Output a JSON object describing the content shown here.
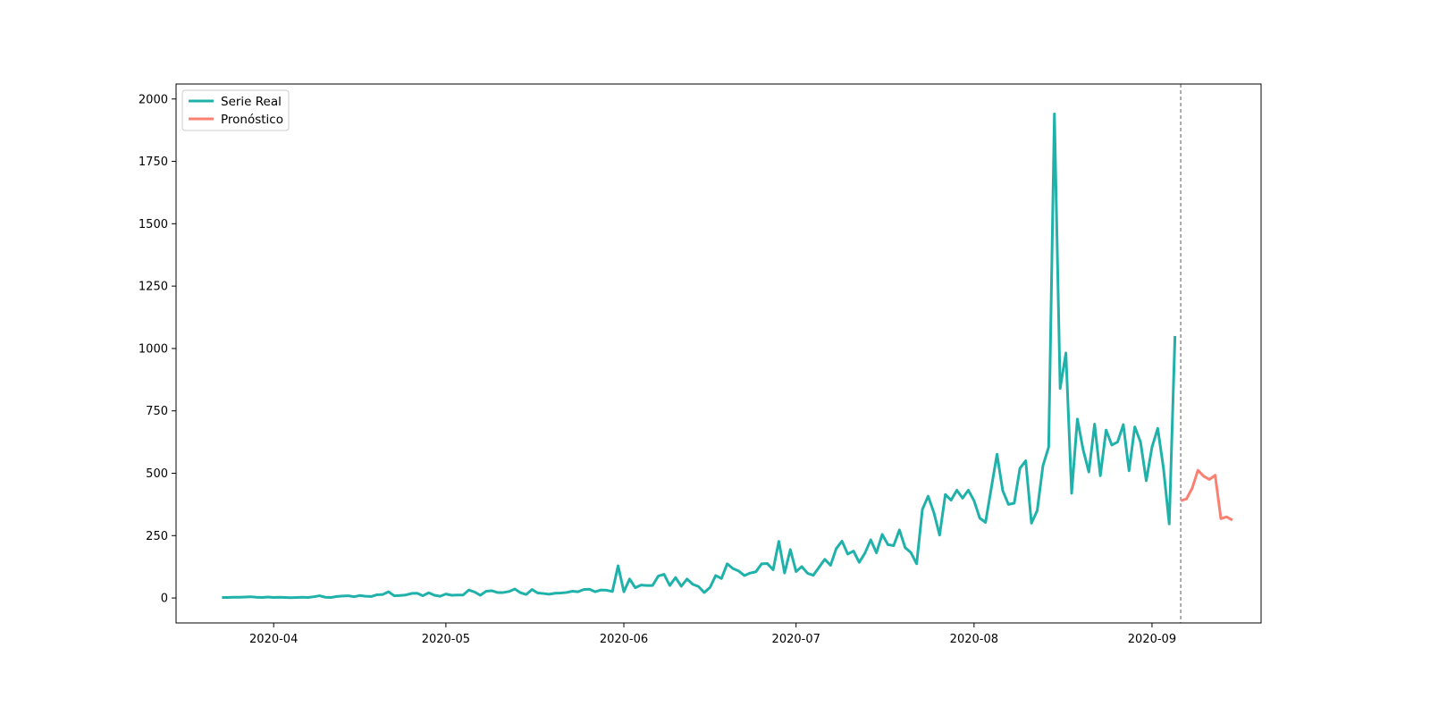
{
  "chart_data": {
    "type": "line",
    "title": "",
    "xlabel": "",
    "ylabel": "",
    "xlim": [
      "2020-03-15",
      "2020-09-20"
    ],
    "ylim": [
      -100,
      2060
    ],
    "x_ticks": [
      "2020-04-01",
      "2020-05-01",
      "2020-06-01",
      "2020-07-01",
      "2020-08-01",
      "2020-09-01"
    ],
    "x_tick_labels": [
      "2020-04",
      "2020-05",
      "2020-06",
      "2020-07",
      "2020-08",
      "2020-09"
    ],
    "y_ticks": [
      0,
      250,
      500,
      750,
      1000,
      1250,
      1500,
      1750,
      2000
    ],
    "y_tick_labels": [
      "0",
      "250",
      "500",
      "750",
      "1000",
      "1250",
      "1500",
      "1750",
      "2000"
    ],
    "grid": false,
    "legend_position": "upper-left",
    "reference_line": {
      "x": "2020-09-06",
      "style": "dashed",
      "color": "#808080"
    },
    "series": [
      {
        "name": "Serie Real",
        "color": "#20b2aa",
        "points": [
          [
            "2020-03-23",
            2
          ],
          [
            "2020-03-24",
            2
          ],
          [
            "2020-03-25",
            3
          ],
          [
            "2020-03-26",
            3
          ],
          [
            "2020-03-27",
            4
          ],
          [
            "2020-03-28",
            5
          ],
          [
            "2020-03-29",
            3
          ],
          [
            "2020-03-30",
            2
          ],
          [
            "2020-03-31",
            4
          ],
          [
            "2020-04-01",
            2
          ],
          [
            "2020-04-02",
            3
          ],
          [
            "2020-04-03",
            2
          ],
          [
            "2020-04-04",
            1
          ],
          [
            "2020-04-05",
            2
          ],
          [
            "2020-04-06",
            3
          ],
          [
            "2020-04-07",
            2
          ],
          [
            "2020-04-08",
            5
          ],
          [
            "2020-04-09",
            9
          ],
          [
            "2020-04-10",
            3
          ],
          [
            "2020-04-11",
            2
          ],
          [
            "2020-04-12",
            6
          ],
          [
            "2020-04-13",
            8
          ],
          [
            "2020-04-14",
            9
          ],
          [
            "2020-04-15",
            5
          ],
          [
            "2020-04-16",
            10
          ],
          [
            "2020-04-17",
            7
          ],
          [
            "2020-04-18",
            6
          ],
          [
            "2020-04-19",
            13
          ],
          [
            "2020-04-20",
            14
          ],
          [
            "2020-04-21",
            25
          ],
          [
            "2020-04-22",
            9
          ],
          [
            "2020-04-23",
            10
          ],
          [
            "2020-04-24",
            12
          ],
          [
            "2020-04-25",
            18
          ],
          [
            "2020-04-26",
            19
          ],
          [
            "2020-04-27",
            9
          ],
          [
            "2020-04-28",
            21
          ],
          [
            "2020-04-29",
            11
          ],
          [
            "2020-04-30",
            7
          ],
          [
            "2020-05-01",
            16
          ],
          [
            "2020-05-02",
            11
          ],
          [
            "2020-05-03",
            12
          ],
          [
            "2020-05-04",
            12
          ],
          [
            "2020-05-05",
            32
          ],
          [
            "2020-05-06",
            24
          ],
          [
            "2020-05-07",
            11
          ],
          [
            "2020-05-08",
            27
          ],
          [
            "2020-05-09",
            29
          ],
          [
            "2020-05-10",
            22
          ],
          [
            "2020-05-11",
            22
          ],
          [
            "2020-05-12",
            26
          ],
          [
            "2020-05-13",
            36
          ],
          [
            "2020-05-14",
            21
          ],
          [
            "2020-05-15",
            14
          ],
          [
            "2020-05-16",
            34
          ],
          [
            "2020-05-17",
            20
          ],
          [
            "2020-05-18",
            18
          ],
          [
            "2020-05-19",
            15
          ],
          [
            "2020-05-20",
            19
          ],
          [
            "2020-05-21",
            20
          ],
          [
            "2020-05-22",
            22
          ],
          [
            "2020-05-23",
            27
          ],
          [
            "2020-05-24",
            25
          ],
          [
            "2020-05-25",
            34
          ],
          [
            "2020-05-26",
            35
          ],
          [
            "2020-05-27",
            25
          ],
          [
            "2020-05-28",
            32
          ],
          [
            "2020-05-29",
            31
          ],
          [
            "2020-05-30",
            26
          ],
          [
            "2020-05-31",
            129
          ],
          [
            "2020-06-01",
            25
          ],
          [
            "2020-06-02",
            76
          ],
          [
            "2020-06-03",
            41
          ],
          [
            "2020-06-04",
            52
          ],
          [
            "2020-06-05",
            50
          ],
          [
            "2020-06-06",
            50
          ],
          [
            "2020-06-07",
            88
          ],
          [
            "2020-06-08",
            95
          ],
          [
            "2020-06-09",
            50
          ],
          [
            "2020-06-10",
            82
          ],
          [
            "2020-06-11",
            47
          ],
          [
            "2020-06-12",
            76
          ],
          [
            "2020-06-13",
            55
          ],
          [
            "2020-06-14",
            46
          ],
          [
            "2020-06-15",
            22
          ],
          [
            "2020-06-16",
            42
          ],
          [
            "2020-06-17",
            90
          ],
          [
            "2020-06-18",
            78
          ],
          [
            "2020-06-19",
            137
          ],
          [
            "2020-06-20",
            118
          ],
          [
            "2020-06-21",
            108
          ],
          [
            "2020-06-22",
            90
          ],
          [
            "2020-06-23",
            100
          ],
          [
            "2020-06-24",
            105
          ],
          [
            "2020-06-25",
            137
          ],
          [
            "2020-06-26",
            138
          ],
          [
            "2020-06-27",
            113
          ],
          [
            "2020-06-28",
            227
          ],
          [
            "2020-06-29",
            100
          ],
          [
            "2020-06-30",
            194
          ],
          [
            "2020-07-01",
            106
          ],
          [
            "2020-07-02",
            126
          ],
          [
            "2020-07-03",
            99
          ],
          [
            "2020-07-04",
            91
          ],
          [
            "2020-07-05",
            123
          ],
          [
            "2020-07-06",
            155
          ],
          [
            "2020-07-07",
            131
          ],
          [
            "2020-07-08",
            198
          ],
          [
            "2020-07-09",
            228
          ],
          [
            "2020-07-10",
            176
          ],
          [
            "2020-07-11",
            188
          ],
          [
            "2020-07-12",
            143
          ],
          [
            "2020-07-13",
            180
          ],
          [
            "2020-07-14",
            233
          ],
          [
            "2020-07-15",
            181
          ],
          [
            "2020-07-16",
            255
          ],
          [
            "2020-07-17",
            214
          ],
          [
            "2020-07-18",
            210
          ],
          [
            "2020-07-19",
            273
          ],
          [
            "2020-07-20",
            202
          ],
          [
            "2020-07-21",
            182
          ],
          [
            "2020-07-22",
            137
          ],
          [
            "2020-07-23",
            355
          ],
          [
            "2020-07-24",
            408
          ],
          [
            "2020-07-25",
            343
          ],
          [
            "2020-07-26",
            252
          ],
          [
            "2020-07-27",
            415
          ],
          [
            "2020-07-28",
            392
          ],
          [
            "2020-07-29",
            432
          ],
          [
            "2020-07-30",
            400
          ],
          [
            "2020-07-31",
            432
          ],
          [
            "2020-08-01",
            390
          ],
          [
            "2020-08-02",
            320
          ],
          [
            "2020-08-03",
            303
          ],
          [
            "2020-08-04",
            440
          ],
          [
            "2020-08-05",
            576
          ],
          [
            "2020-08-06",
            430
          ],
          [
            "2020-08-07",
            375
          ],
          [
            "2020-08-08",
            380
          ],
          [
            "2020-08-09",
            520
          ],
          [
            "2020-08-10",
            550
          ],
          [
            "2020-08-11",
            300
          ],
          [
            "2020-08-12",
            350
          ],
          [
            "2020-08-13",
            530
          ],
          [
            "2020-08-14",
            605
          ],
          [
            "2020-08-15",
            1940
          ],
          [
            "2020-08-16",
            840
          ],
          [
            "2020-08-17",
            982
          ],
          [
            "2020-08-18",
            420
          ],
          [
            "2020-08-19",
            717
          ],
          [
            "2020-08-20",
            595
          ],
          [
            "2020-08-21",
            505
          ],
          [
            "2020-08-22",
            697
          ],
          [
            "2020-08-23",
            490
          ],
          [
            "2020-08-24",
            673
          ],
          [
            "2020-08-25",
            613
          ],
          [
            "2020-08-26",
            625
          ],
          [
            "2020-08-27",
            695
          ],
          [
            "2020-08-28",
            510
          ],
          [
            "2020-08-29",
            686
          ],
          [
            "2020-08-30",
            625
          ],
          [
            "2020-08-31",
            470
          ],
          [
            "2020-09-01",
            605
          ],
          [
            "2020-09-02",
            680
          ],
          [
            "2020-09-03",
            520
          ],
          [
            "2020-09-04",
            297
          ],
          [
            "2020-09-05",
            1050
          ]
        ]
      },
      {
        "name": "Pronóstico",
        "color": "#fa8072",
        "points": [
          [
            "2020-09-06",
            390
          ],
          [
            "2020-09-07",
            397
          ],
          [
            "2020-09-08",
            440
          ],
          [
            "2020-09-09",
            512
          ],
          [
            "2020-09-10",
            488
          ],
          [
            "2020-09-11",
            475
          ],
          [
            "2020-09-12",
            492
          ],
          [
            "2020-09-13",
            318
          ],
          [
            "2020-09-14",
            325
          ],
          [
            "2020-09-15",
            312
          ]
        ]
      }
    ]
  }
}
